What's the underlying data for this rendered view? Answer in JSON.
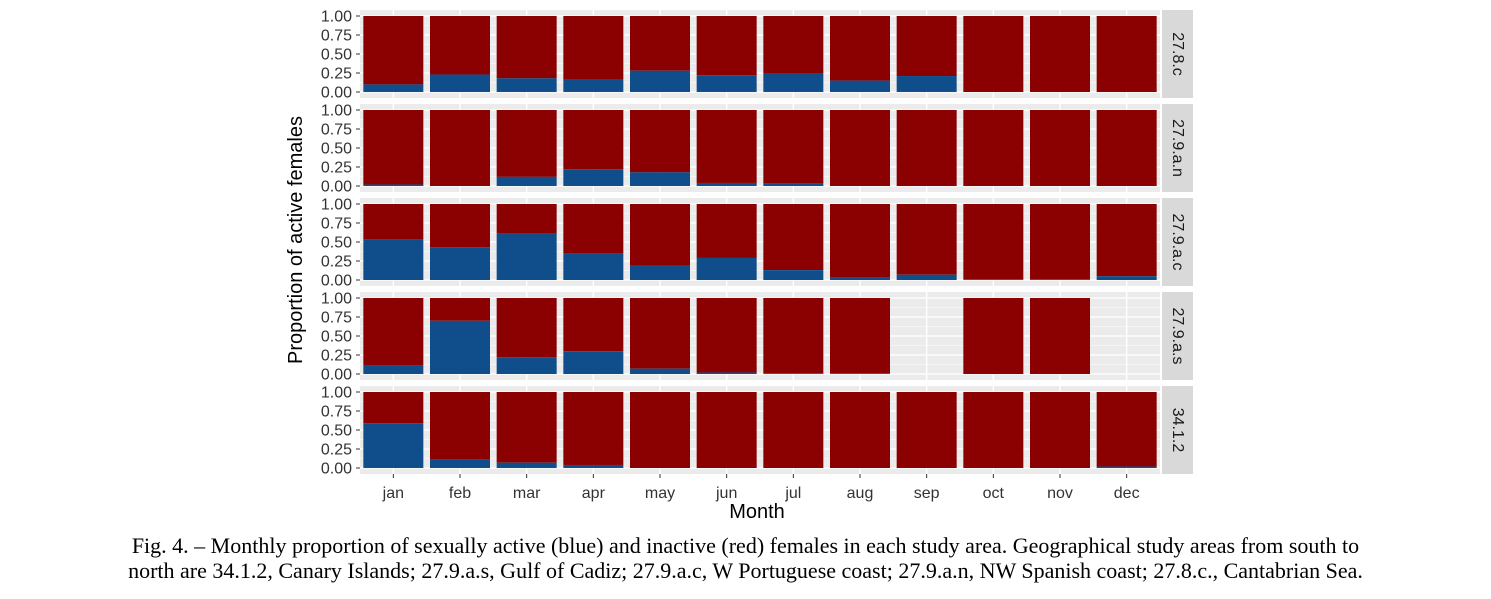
{
  "chart_data": {
    "type": "bar",
    "stacked": true,
    "xlabel": "Month",
    "ylabel": "Proportion of active females",
    "ylim": [
      0,
      1
    ],
    "yticks": [
      "0.00",
      "0.25",
      "0.50",
      "0.75",
      "1.00"
    ],
    "categories": [
      "jan",
      "feb",
      "mar",
      "apr",
      "may",
      "jun",
      "jul",
      "aug",
      "sep",
      "oct",
      "nov",
      "dec"
    ],
    "colors": {
      "active": "#0f4e8b",
      "inactive": "#8b0000",
      "panel_bg": "#ebebeb",
      "grid": "#ffffff",
      "strip_bg": "#d9d9d9"
    },
    "grid": true,
    "facets": [
      {
        "label": "27.8.c",
        "active": [
          0.1,
          0.23,
          0.18,
          0.16,
          0.28,
          0.22,
          0.25,
          0.15,
          0.21,
          0.0,
          0.0,
          0.0
        ]
      },
      {
        "label": "27.9.a.n",
        "active": [
          0.02,
          0.0,
          0.12,
          0.22,
          0.18,
          0.04,
          0.03,
          0.0,
          0.0,
          0.0,
          0.0,
          0.0
        ]
      },
      {
        "label": "27.9.a.c",
        "active": [
          0.53,
          0.43,
          0.61,
          0.35,
          0.19,
          0.29,
          0.13,
          0.03,
          0.07,
          0.01,
          0.01,
          0.05
        ]
      },
      {
        "label": "27.9.a.s",
        "active": [
          0.11,
          0.7,
          0.22,
          0.3,
          0.07,
          0.02,
          0.01,
          0.01,
          null,
          0.0,
          0.0,
          null
        ]
      },
      {
        "label": "34.1.2",
        "active": [
          0.59,
          0.11,
          0.07,
          0.04,
          0.0,
          0.0,
          0.0,
          0.0,
          0.0,
          0.0,
          0.0,
          0.02
        ]
      }
    ]
  },
  "caption": {
    "line1": "Fig. 4. – Monthly proportion of sexually active (blue) and inactive (red) females in each study area. Geographical study areas from south to",
    "line2": "north are 34.1.2, Canary Islands; 27.9.a.s, Gulf of Cadiz; 27.9.a.c, W Portuguese coast; 27.9.a.n, NW Spanish coast; 27.8.c., Cantabrian Sea."
  }
}
